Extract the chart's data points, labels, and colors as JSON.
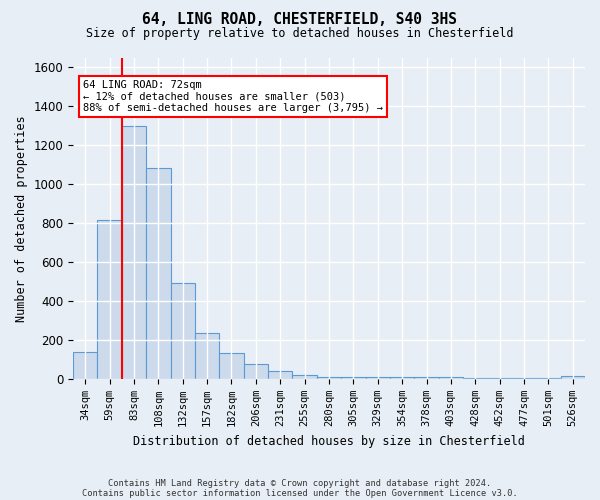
{
  "title": "64, LING ROAD, CHESTERFIELD, S40 3HS",
  "subtitle": "Size of property relative to detached houses in Chesterfield",
  "xlabel": "Distribution of detached houses by size in Chesterfield",
  "ylabel": "Number of detached properties",
  "bar_color": "#ccdaeb",
  "bar_edge_color": "#5b9bd5",
  "background_color": "#e8eef5",
  "grid_color": "white",
  "categories": [
    "34sqm",
    "59sqm",
    "83sqm",
    "108sqm",
    "132sqm",
    "157sqm",
    "182sqm",
    "206sqm",
    "231sqm",
    "255sqm",
    "280sqm",
    "305sqm",
    "329sqm",
    "354sqm",
    "378sqm",
    "403sqm",
    "428sqm",
    "452sqm",
    "477sqm",
    "501sqm",
    "526sqm"
  ],
  "values": [
    140,
    815,
    1300,
    1085,
    490,
    235,
    135,
    75,
    42,
    22,
    12,
    10,
    10,
    8,
    8,
    8,
    5,
    5,
    5,
    5,
    15
  ],
  "ylim": [
    0,
    1650
  ],
  "yticks": [
    0,
    200,
    400,
    600,
    800,
    1000,
    1200,
    1400,
    1600
  ],
  "red_line_x": 1.5,
  "annotation_title": "64 LING ROAD: 72sqm",
  "annotation_line1": "← 12% of detached houses are smaller (503)",
  "annotation_line2": "88% of semi-detached houses are larger (3,795) →",
  "annotation_box_color": "white",
  "annotation_border_color": "red",
  "footnote1": "Contains HM Land Registry data © Crown copyright and database right 2024.",
  "footnote2": "Contains public sector information licensed under the Open Government Licence v3.0."
}
